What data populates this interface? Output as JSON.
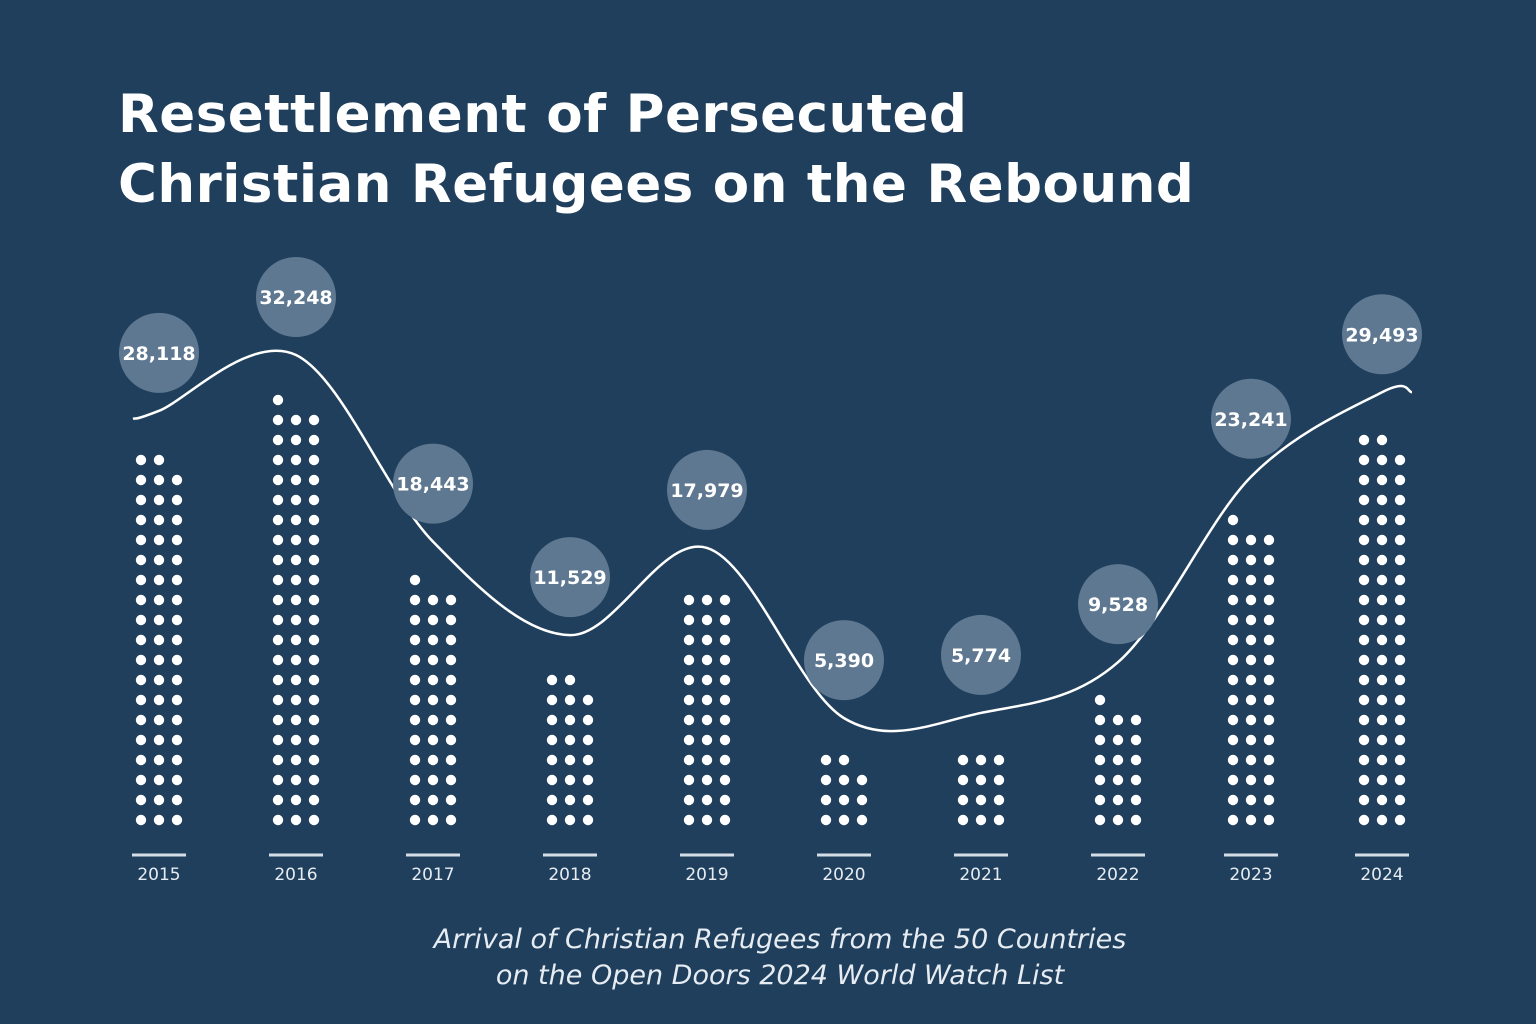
{
  "title_lines": [
    "Resettlement of Persecuted",
    "Christian Refugees on the Rebound"
  ],
  "caption_lines": [
    "Arrival of Christian Refugees from the 50 Countries",
    "on the Open Doors 2024 World Watch List"
  ],
  "colors": {
    "background": "#1f3f5c",
    "bubble": "#5f7891",
    "dot": "#ffffff",
    "line": "#ffffff"
  },
  "chart_data": {
    "type": "bar",
    "style": "dot columns with smoothed trend line and value bubbles",
    "categories": [
      "2015",
      "2016",
      "2017",
      "2018",
      "2019",
      "2020",
      "2021",
      "2022",
      "2023",
      "2024"
    ],
    "values": [
      28118,
      32248,
      18443,
      11529,
      17979,
      5390,
      5774,
      9528,
      23241,
      29493
    ],
    "data_labels": [
      "28,118",
      "32,248",
      "18,443",
      "11,529",
      "17,979",
      "5,390",
      "5,774",
      "9,528",
      "23,241",
      "29,493"
    ],
    "title": "Resettlement of Persecuted Christian Refugees on the Rebound",
    "xlabel": "",
    "ylabel": "",
    "grid": false
  }
}
